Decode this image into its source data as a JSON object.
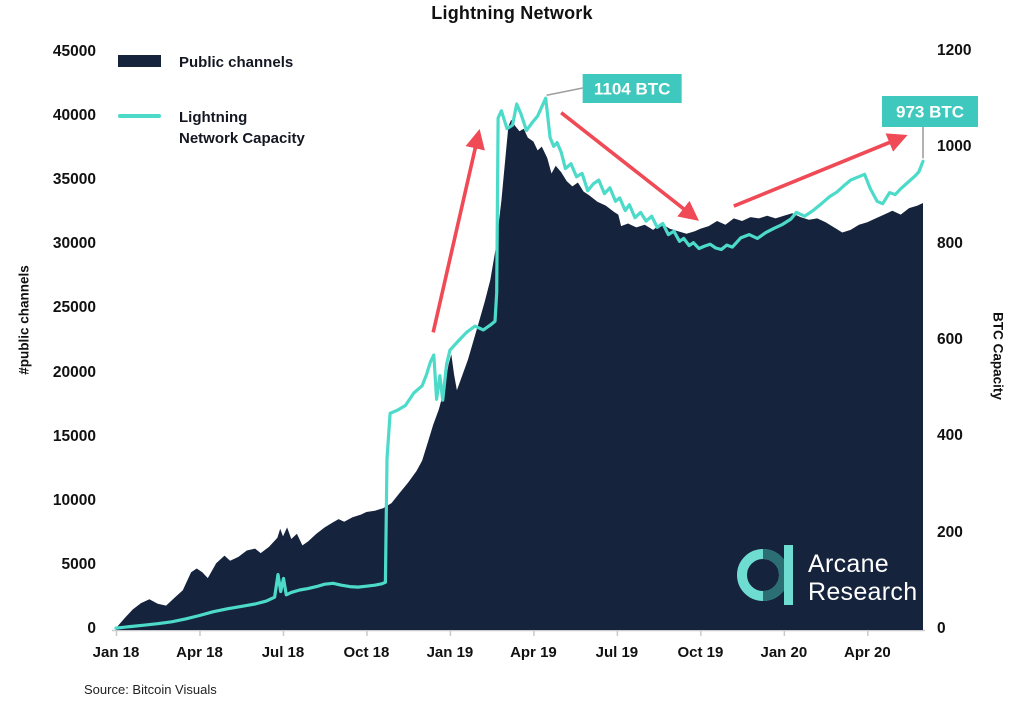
{
  "title": "Lightning Network",
  "source": "Source: Bitcoin Visuals",
  "legend": {
    "items": [
      {
        "label": "Public channels",
        "swatch": "area-swatch"
      },
      {
        "label_line1": "Lightning",
        "label_line2": "Network Capacity",
        "swatch": "line-swatch"
      }
    ]
  },
  "logo": {
    "line1": "Arcane",
    "line2": "Research"
  },
  "colors": {
    "navy": "#16233C",
    "teal_line": "#4CDAC9",
    "annotation_teal": "#3FC8BD",
    "arrow_red": "#EF4A55",
    "connector_gray": "#9E9E9E",
    "axis_gray": "#C9C9C9",
    "logo_light_teal": "#6FDCD1",
    "logo_dark_teal": "#2B6E74"
  },
  "chart_data": {
    "type": "combo",
    "title": "Lightning Network",
    "x_ticks": [
      "Jan 18",
      "Apr 18",
      "Jul 18",
      "Oct 18",
      "Jan 19",
      "Apr 19",
      "Jul 19",
      "Oct 19",
      "Jan 20",
      "Apr 20"
    ],
    "x_tick_months": [
      0,
      3,
      6,
      9,
      12,
      15,
      18,
      21,
      24,
      27
    ],
    "x_range_months": [
      0,
      29
    ],
    "grid": "off",
    "left_axis": {
      "label": "#public channels",
      "min": 0,
      "max": 45000,
      "ticks": [
        0,
        5000,
        10000,
        15000,
        20000,
        25000,
        30000,
        35000,
        40000,
        45000
      ]
    },
    "right_axis": {
      "label": "BTC Capacity",
      "min": 0,
      "max": 1200,
      "ticks": [
        0,
        200,
        400,
        600,
        800,
        1000,
        1200
      ]
    },
    "series": [
      {
        "name": "Public channels",
        "type": "area",
        "axis": "left",
        "color": "#16233C",
        "points": [
          [
            0,
            150
          ],
          [
            0.3,
            900
          ],
          [
            0.6,
            1600
          ],
          [
            0.9,
            2100
          ],
          [
            1.2,
            2400
          ],
          [
            1.5,
            2050
          ],
          [
            1.8,
            1900
          ],
          [
            2.1,
            2500
          ],
          [
            2.4,
            3100
          ],
          [
            2.7,
            4500
          ],
          [
            2.9,
            4800
          ],
          [
            3.1,
            4500
          ],
          [
            3.3,
            4050
          ],
          [
            3.6,
            5200
          ],
          [
            3.9,
            5800
          ],
          [
            4.1,
            5400
          ],
          [
            4.4,
            5700
          ],
          [
            4.7,
            6200
          ],
          [
            5.0,
            6350
          ],
          [
            5.2,
            6000
          ],
          [
            5.5,
            6500
          ],
          [
            5.8,
            7200
          ],
          [
            5.9,
            7900
          ],
          [
            6.0,
            7300
          ],
          [
            6.15,
            8000
          ],
          [
            6.3,
            7100
          ],
          [
            6.5,
            7500
          ],
          [
            6.7,
            6600
          ],
          [
            6.9,
            6900
          ],
          [
            7.2,
            7500
          ],
          [
            7.5,
            8000
          ],
          [
            7.8,
            8400
          ],
          [
            8.0,
            8650
          ],
          [
            8.2,
            8450
          ],
          [
            8.5,
            8800
          ],
          [
            8.8,
            9000
          ],
          [
            9.0,
            9200
          ],
          [
            9.3,
            9300
          ],
          [
            9.6,
            9500
          ],
          [
            9.9,
            9900
          ],
          [
            10.2,
            10700
          ],
          [
            10.5,
            11500
          ],
          [
            10.8,
            12400
          ],
          [
            11.0,
            13200
          ],
          [
            11.2,
            14600
          ],
          [
            11.4,
            16000
          ],
          [
            11.6,
            17200
          ],
          [
            11.8,
            18800
          ],
          [
            11.95,
            20700
          ],
          [
            12.05,
            21500
          ],
          [
            12.15,
            19900
          ],
          [
            12.25,
            18700
          ],
          [
            12.45,
            19900
          ],
          [
            12.65,
            21100
          ],
          [
            12.85,
            22600
          ],
          [
            13.05,
            24100
          ],
          [
            13.25,
            25600
          ],
          [
            13.45,
            27300
          ],
          [
            13.65,
            29800
          ],
          [
            13.85,
            33500
          ],
          [
            14.0,
            37000
          ],
          [
            14.1,
            39300
          ],
          [
            14.2,
            39800
          ],
          [
            14.35,
            39300
          ],
          [
            14.5,
            38900
          ],
          [
            14.65,
            39100
          ],
          [
            14.8,
            38400
          ],
          [
            15.0,
            38100
          ],
          [
            15.15,
            37400
          ],
          [
            15.3,
            37700
          ],
          [
            15.5,
            36800
          ],
          [
            15.65,
            35600
          ],
          [
            15.8,
            36200
          ],
          [
            16.0,
            35700
          ],
          [
            16.2,
            35000
          ],
          [
            16.4,
            34600
          ],
          [
            16.6,
            34900
          ],
          [
            16.8,
            34200
          ],
          [
            17.0,
            33900
          ],
          [
            17.3,
            33400
          ],
          [
            17.6,
            33100
          ],
          [
            17.9,
            32600
          ],
          [
            18.05,
            32400
          ],
          [
            18.15,
            31500
          ],
          [
            18.4,
            31700
          ],
          [
            18.7,
            31400
          ],
          [
            19.0,
            31600
          ],
          [
            19.3,
            31200
          ],
          [
            19.6,
            31700
          ],
          [
            19.9,
            31300
          ],
          [
            20.2,
            31100
          ],
          [
            20.5,
            30900
          ],
          [
            20.8,
            31100
          ],
          [
            21.0,
            31300
          ],
          [
            21.3,
            31500
          ],
          [
            21.6,
            31900
          ],
          [
            21.9,
            31600
          ],
          [
            22.2,
            32100
          ],
          [
            22.5,
            31900
          ],
          [
            22.8,
            32200
          ],
          [
            23.1,
            32100
          ],
          [
            23.4,
            32300
          ],
          [
            23.7,
            32100
          ],
          [
            24.0,
            32300
          ],
          [
            24.3,
            32500
          ],
          [
            24.6,
            32200
          ],
          [
            24.9,
            32000
          ],
          [
            25.2,
            32100
          ],
          [
            25.5,
            31800
          ],
          [
            25.8,
            31400
          ],
          [
            26.1,
            31000
          ],
          [
            26.4,
            31200
          ],
          [
            26.7,
            31600
          ],
          [
            27.0,
            31800
          ],
          [
            27.3,
            32100
          ],
          [
            27.6,
            32400
          ],
          [
            27.9,
            32700
          ],
          [
            28.2,
            32400
          ],
          [
            28.5,
            32900
          ],
          [
            28.8,
            33100
          ],
          [
            29.0,
            33300
          ]
        ]
      },
      {
        "name": "Lightning Network Capacity",
        "type": "line",
        "axis": "right",
        "color": "#4CDAC9",
        "points": [
          [
            0,
            4
          ],
          [
            0.5,
            7
          ],
          [
            1,
            10
          ],
          [
            1.5,
            13
          ],
          [
            2,
            17
          ],
          [
            2.5,
            23
          ],
          [
            3,
            30
          ],
          [
            3.5,
            38
          ],
          [
            4,
            44
          ],
          [
            4.5,
            49
          ],
          [
            5,
            54
          ],
          [
            5.4,
            60
          ],
          [
            5.7,
            68
          ],
          [
            5.82,
            115
          ],
          [
            5.92,
            80
          ],
          [
            6.02,
            107
          ],
          [
            6.12,
            73
          ],
          [
            6.3,
            78
          ],
          [
            6.6,
            83
          ],
          [
            6.9,
            86
          ],
          [
            7.2,
            90
          ],
          [
            7.5,
            95
          ],
          [
            7.8,
            97
          ],
          [
            8.1,
            93
          ],
          [
            8.4,
            90
          ],
          [
            8.7,
            89
          ],
          [
            9.0,
            91
          ],
          [
            9.3,
            93
          ],
          [
            9.55,
            96
          ],
          [
            9.68,
            99
          ],
          [
            9.74,
            355
          ],
          [
            9.85,
            450
          ],
          [
            10.1,
            456
          ],
          [
            10.4,
            466
          ],
          [
            10.7,
            492
          ],
          [
            11.0,
            507
          ],
          [
            11.15,
            529
          ],
          [
            11.3,
            557
          ],
          [
            11.42,
            571
          ],
          [
            11.52,
            479
          ],
          [
            11.64,
            528
          ],
          [
            11.74,
            477
          ],
          [
            11.88,
            552
          ],
          [
            12.0,
            581
          ],
          [
            12.3,
            600
          ],
          [
            12.6,
            618
          ],
          [
            12.9,
            631
          ],
          [
            13.2,
            623
          ],
          [
            13.45,
            633
          ],
          [
            13.62,
            641
          ],
          [
            13.68,
            700
          ],
          [
            13.73,
            1063
          ],
          [
            13.85,
            1078
          ],
          [
            14.05,
            1041
          ],
          [
            14.25,
            1048
          ],
          [
            14.4,
            1092
          ],
          [
            14.55,
            1072
          ],
          [
            14.75,
            1037
          ],
          [
            14.95,
            1053
          ],
          [
            15.15,
            1067
          ],
          [
            15.44,
            1104
          ],
          [
            15.6,
            1022
          ],
          [
            15.73,
            1004
          ],
          [
            15.85,
            1012
          ],
          [
            16.0,
            992
          ],
          [
            16.15,
            958
          ],
          [
            16.35,
            968
          ],
          [
            16.55,
            941
          ],
          [
            16.75,
            948
          ],
          [
            16.95,
            912
          ],
          [
            17.15,
            926
          ],
          [
            17.35,
            934
          ],
          [
            17.55,
            906
          ],
          [
            17.75,
            918
          ],
          [
            17.95,
            890
          ],
          [
            18.1,
            897
          ],
          [
            18.3,
            871
          ],
          [
            18.45,
            883
          ],
          [
            18.65,
            856
          ],
          [
            18.85,
            867
          ],
          [
            19.05,
            849
          ],
          [
            19.25,
            859
          ],
          [
            19.45,
            836
          ],
          [
            19.65,
            844
          ],
          [
            19.85,
            821
          ],
          [
            20.05,
            828
          ],
          [
            20.25,
            807
          ],
          [
            20.4,
            813
          ],
          [
            20.6,
            798
          ],
          [
            20.75,
            804
          ],
          [
            20.95,
            792
          ],
          [
            21.15,
            797
          ],
          [
            21.35,
            801
          ],
          [
            21.55,
            793
          ],
          [
            21.75,
            790
          ],
          [
            21.95,
            799
          ],
          [
            22.15,
            795
          ],
          [
            22.45,
            814
          ],
          [
            22.75,
            821
          ],
          [
            23.05,
            813
          ],
          [
            23.35,
            825
          ],
          [
            23.65,
            834
          ],
          [
            23.95,
            842
          ],
          [
            24.25,
            853
          ],
          [
            24.45,
            867
          ],
          [
            24.75,
            859
          ],
          [
            25.05,
            871
          ],
          [
            25.35,
            885
          ],
          [
            25.65,
            900
          ],
          [
            25.9,
            909
          ],
          [
            26.15,
            922
          ],
          [
            26.4,
            934
          ],
          [
            26.65,
            940
          ],
          [
            26.9,
            946
          ],
          [
            27.1,
            917
          ],
          [
            27.35,
            890
          ],
          [
            27.55,
            885
          ],
          [
            27.8,
            908
          ],
          [
            28.0,
            904
          ],
          [
            28.2,
            916
          ],
          [
            28.45,
            929
          ],
          [
            28.7,
            942
          ],
          [
            28.85,
            951
          ],
          [
            29.0,
            973
          ]
        ]
      }
    ],
    "annotations": [
      {
        "label": "1104 BTC",
        "month": 15.44,
        "value": 1104,
        "axis": "right"
      },
      {
        "label": "973 BTC",
        "month": 29.0,
        "value": 973,
        "axis": "right"
      }
    ],
    "arrows": [
      {
        "name": "rise-2018-to-peak",
        "from": [
          11.4,
          618
        ],
        "to": [
          13.02,
          1028
        ],
        "direction": "up"
      },
      {
        "name": "decline-after-peak",
        "from": [
          16.0,
          1074
        ],
        "to": [
          20.78,
          857
        ],
        "direction": "down"
      },
      {
        "name": "recovery-2020",
        "from": [
          22.2,
          880
        ],
        "to": [
          28.25,
          1023
        ],
        "direction": "up"
      }
    ]
  }
}
